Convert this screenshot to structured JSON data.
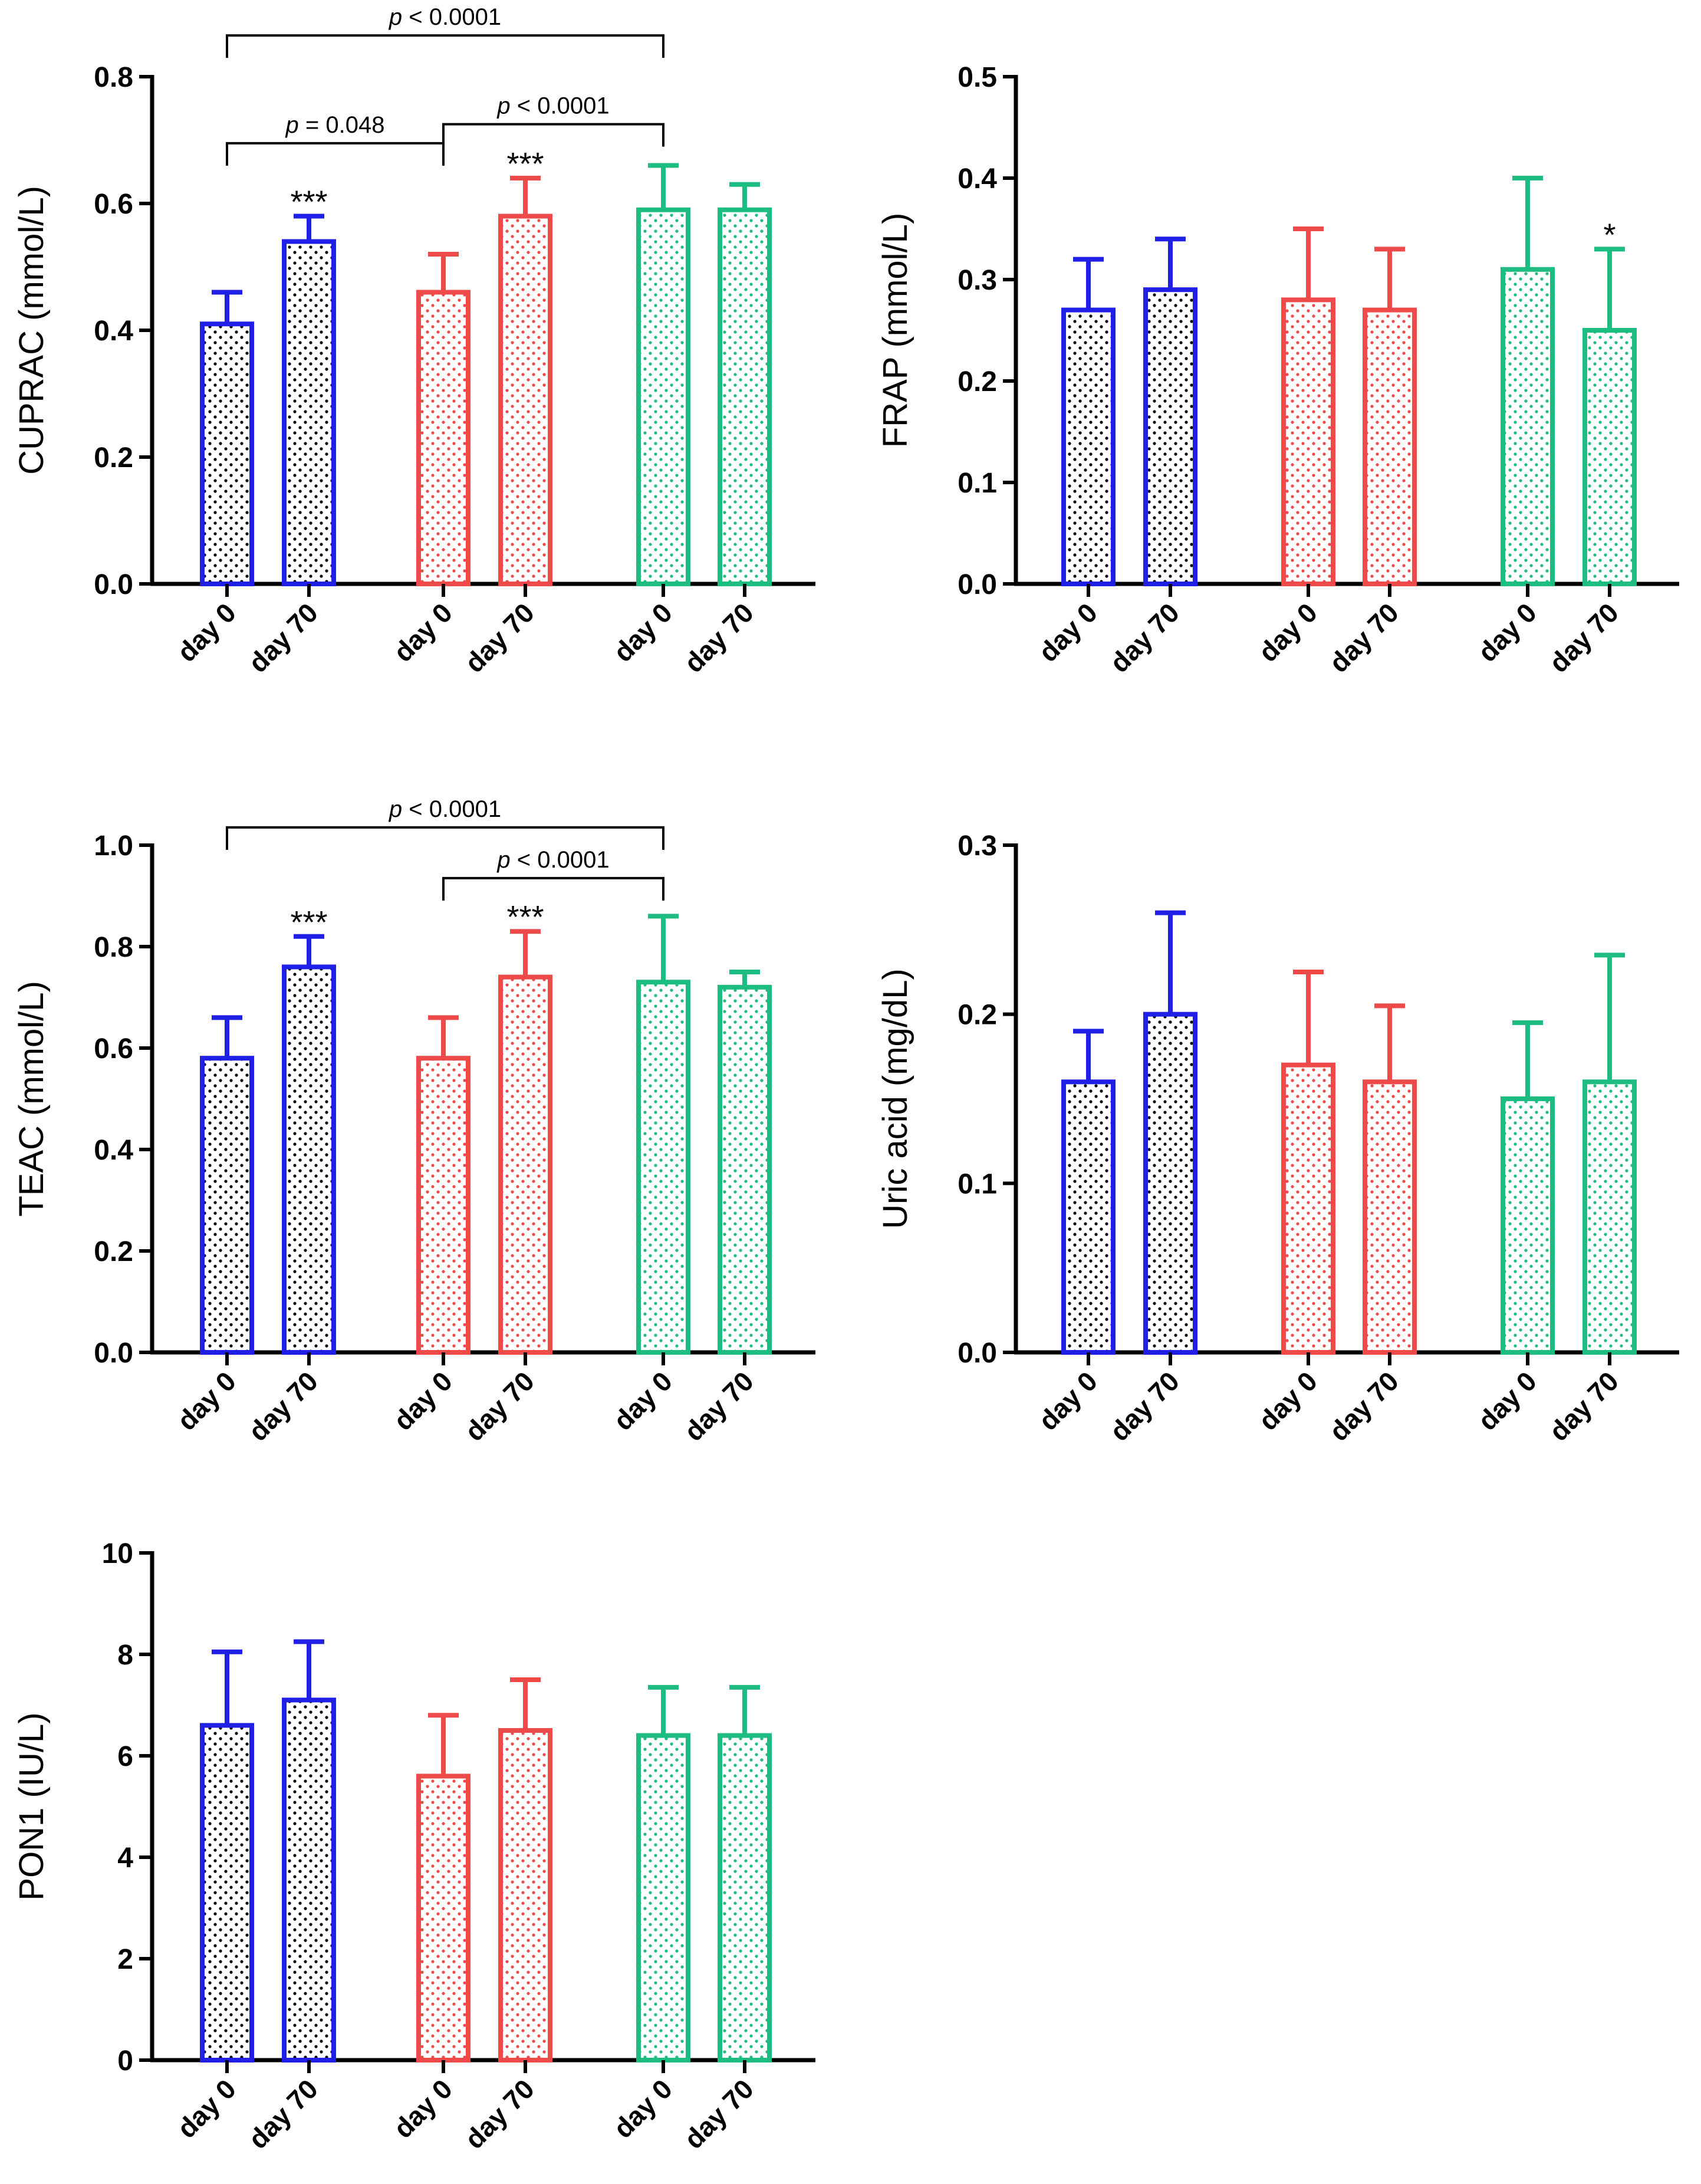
{
  "colors": {
    "blue": "#1f1fe6",
    "red": "#ee4a4a",
    "green": "#1dbd82",
    "axis": "#000000"
  },
  "chart_data": [
    {
      "type": "bar",
      "ylabel": "CUPRAC (mmol/L)",
      "ylim": [
        0,
        0.8
      ],
      "yticks": [
        0.0,
        0.2,
        0.4,
        0.6,
        0.8
      ],
      "ytick_labels": [
        "0.0",
        "0.2",
        "0.4",
        "0.6",
        "0.8"
      ],
      "categories": [
        "day 0",
        "day 70",
        "day 0",
        "day 70",
        "day 0",
        "day 70"
      ],
      "groups": [
        "blue",
        "blue",
        "red",
        "red",
        "green",
        "green"
      ],
      "values": [
        0.41,
        0.54,
        0.46,
        0.58,
        0.59,
        0.59
      ],
      "errors": [
        0.05,
        0.04,
        0.06,
        0.06,
        0.07,
        0.04
      ],
      "stars": [
        "",
        "***",
        "",
        "***",
        "",
        ""
      ],
      "brackets": [
        {
          "from": 0,
          "to": 4,
          "level": 0.865,
          "label": "p < 0.0001"
        },
        {
          "from": 0,
          "to": 2,
          "level": 0.695,
          "label": "p = 0.048"
        },
        {
          "from": 2,
          "to": 4,
          "level": 0.725,
          "label": "p < 0.0001"
        }
      ]
    },
    {
      "type": "bar",
      "ylabel": "FRAP (mmol/L)",
      "ylim": [
        0,
        0.5
      ],
      "yticks": [
        0.0,
        0.1,
        0.2,
        0.3,
        0.4,
        0.5
      ],
      "ytick_labels": [
        "0.0",
        "0.1",
        "0.2",
        "0.3",
        "0.4",
        "0.5"
      ],
      "categories": [
        "day 0",
        "day 70",
        "day 0",
        "day 70",
        "day 0",
        "day 70"
      ],
      "groups": [
        "blue",
        "blue",
        "red",
        "red",
        "green",
        "green"
      ],
      "values": [
        0.27,
        0.29,
        0.28,
        0.27,
        0.31,
        0.25
      ],
      "errors": [
        0.05,
        0.05,
        0.07,
        0.06,
        0.09,
        0.08
      ],
      "stars": [
        "",
        "",
        "",
        "",
        "",
        "*"
      ],
      "brackets": []
    },
    {
      "type": "bar",
      "ylabel": "TEAC (mmol/L)",
      "ylim": [
        0,
        1.0
      ],
      "yticks": [
        0.0,
        0.2,
        0.4,
        0.6,
        0.8,
        1.0
      ],
      "ytick_labels": [
        "0.0",
        "0.2",
        "0.4",
        "0.6",
        "0.8",
        "1.0"
      ],
      "categories": [
        "day 0",
        "day 70",
        "day 0",
        "day 70",
        "day 0",
        "day 70"
      ],
      "groups": [
        "blue",
        "blue",
        "red",
        "red",
        "green",
        "green"
      ],
      "values": [
        0.58,
        0.76,
        0.58,
        0.74,
        0.73,
        0.72
      ],
      "errors": [
        0.08,
        0.06,
        0.08,
        0.09,
        0.13,
        0.03
      ],
      "stars": [
        "",
        "***",
        "",
        "***",
        "",
        ""
      ],
      "brackets": [
        {
          "from": 0,
          "to": 4,
          "level": 1.035,
          "label": "p < 0.0001"
        },
        {
          "from": 2,
          "to": 4,
          "level": 0.935,
          "label": "p < 0.0001"
        }
      ]
    },
    {
      "type": "bar",
      "ylabel": "Uric acid (mg/dL)",
      "ylim": [
        0,
        0.3
      ],
      "yticks": [
        0.0,
        0.1,
        0.2,
        0.3
      ],
      "ytick_labels": [
        "0.0",
        "0.1",
        "0.2",
        "0.3"
      ],
      "categories": [
        "day 0",
        "day 70",
        "day 0",
        "day 70",
        "day 0",
        "day 70"
      ],
      "groups": [
        "blue",
        "blue",
        "red",
        "red",
        "green",
        "green"
      ],
      "values": [
        0.16,
        0.2,
        0.17,
        0.16,
        0.15,
        0.16
      ],
      "errors": [
        0.03,
        0.06,
        0.055,
        0.045,
        0.045,
        0.075
      ],
      "stars": [
        "",
        "",
        "",
        "",
        "",
        ""
      ],
      "brackets": []
    },
    {
      "type": "bar",
      "ylabel": "PON1 (IU/L)",
      "ylim": [
        0,
        10
      ],
      "yticks": [
        0,
        2,
        4,
        6,
        8,
        10
      ],
      "ytick_labels": [
        "0",
        "2",
        "4",
        "6",
        "8",
        "10"
      ],
      "categories": [
        "day 0",
        "day 70",
        "day 0",
        "day 70",
        "day 0",
        "day 70"
      ],
      "groups": [
        "blue",
        "blue",
        "red",
        "red",
        "green",
        "green"
      ],
      "values": [
        6.6,
        7.1,
        5.6,
        6.5,
        6.4,
        6.4
      ],
      "errors": [
        1.45,
        1.15,
        1.2,
        1.0,
        0.95,
        0.95
      ],
      "stars": [
        "",
        "",
        "",
        "",
        "",
        ""
      ],
      "brackets": []
    }
  ]
}
